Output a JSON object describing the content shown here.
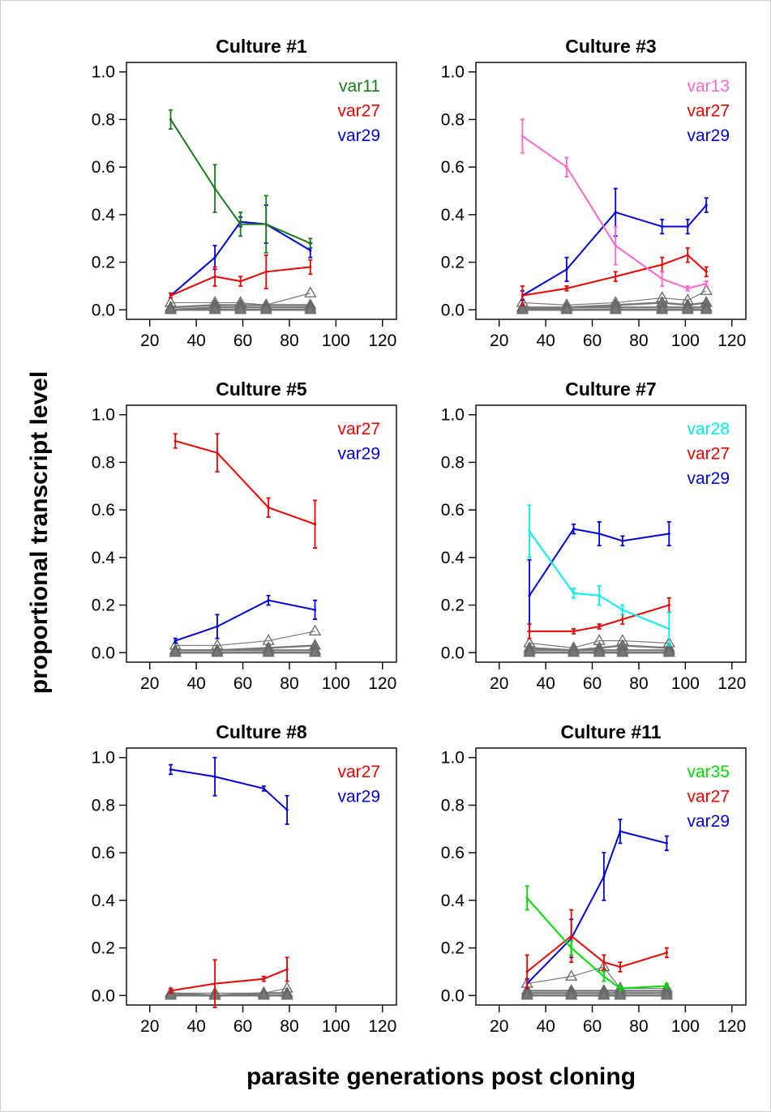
{
  "figure": {
    "ylabel": "proportional transcript level",
    "xlabel": "parasite generations post cloning"
  },
  "axes": {
    "xticks": [
      20,
      40,
      60,
      80,
      100,
      120
    ],
    "yticks": [
      "0.0",
      "0.2",
      "0.4",
      "0.6",
      "0.8",
      "1.0"
    ],
    "xlim": [
      10,
      126
    ],
    "ylim": [
      -0.04,
      1.04
    ]
  },
  "colors": {
    "var11": "#1a7a1a",
    "var13": "#ff66cc",
    "var27": "#ee0000",
    "var28": "#00eeee",
    "var29": "#0000dd",
    "var35": "#00dd00",
    "minor": "#777777"
  },
  "chart_data": [
    {
      "type": "line",
      "title": "Culture #1",
      "xlabel": "parasite generations post cloning",
      "ylabel": "proportional transcript level",
      "x": [
        29,
        48,
        59,
        70,
        89
      ],
      "series": [
        {
          "name": "var11",
          "values": [
            0.8,
            0.51,
            0.36,
            0.36,
            0.28
          ],
          "err": [
            0.04,
            0.1,
            0.05,
            0.12,
            0.02
          ]
        },
        {
          "name": "var27",
          "values": [
            0.06,
            0.14,
            0.12,
            0.16,
            0.18
          ],
          "err": [
            0.01,
            0.04,
            0.02,
            0.07,
            0.03
          ]
        },
        {
          "name": "var29",
          "values": [
            0.06,
            0.22,
            0.37,
            0.36,
            0.25
          ],
          "err": [
            0.01,
            0.05,
            0.02,
            0.08,
            0.03
          ]
        }
      ],
      "minor": [
        [
          0.03,
          0.03,
          0.03,
          0.02,
          0.07
        ],
        [
          0.01,
          0.02,
          0.02,
          0.02,
          0.02
        ],
        [
          0.0,
          0.01,
          0.01,
          0.01,
          0.01
        ],
        [
          0.0,
          0.0,
          0.0,
          0.0,
          0.0
        ]
      ],
      "legend": [
        "var11",
        "var27",
        "var29"
      ],
      "legend_position": "top-right",
      "xlim": [
        10,
        126
      ],
      "ylim": [
        -0.04,
        1.04
      ]
    },
    {
      "type": "line",
      "title": "Culture #3",
      "xlabel": "parasite generations post cloning",
      "ylabel": "proportional transcript level",
      "x": [
        30,
        49,
        70,
        90,
        101,
        109
      ],
      "series": [
        {
          "name": "var13",
          "values": [
            0.73,
            0.6,
            0.27,
            0.13,
            0.09,
            0.11
          ],
          "err": [
            0.07,
            0.04,
            0.08,
            0.03,
            0.01,
            0.01
          ]
        },
        {
          "name": "var27",
          "values": [
            0.06,
            0.09,
            0.14,
            0.19,
            0.23,
            0.16
          ],
          "err": [
            0.04,
            0.01,
            0.02,
            0.03,
            0.03,
            0.02
          ]
        },
        {
          "name": "var29",
          "values": [
            0.06,
            0.17,
            0.41,
            0.35,
            0.35,
            0.44
          ],
          "err": [
            0.02,
            0.05,
            0.1,
            0.03,
            0.03,
            0.03
          ]
        }
      ],
      "minor": [
        [
          0.03,
          0.02,
          0.03,
          0.05,
          0.04,
          0.08
        ],
        [
          0.01,
          0.01,
          0.02,
          0.03,
          0.02,
          0.03
        ],
        [
          0.0,
          0.01,
          0.01,
          0.01,
          0.01,
          0.01
        ],
        [
          0.0,
          0.0,
          0.0,
          0.0,
          0.0,
          0.0
        ]
      ],
      "legend": [
        "var13",
        "var27",
        "var29"
      ],
      "legend_position": "top-right",
      "xlim": [
        10,
        126
      ],
      "ylim": [
        -0.04,
        1.04
      ]
    },
    {
      "type": "line",
      "title": "Culture #5",
      "xlabel": "parasite generations post cloning",
      "ylabel": "proportional transcript level",
      "x": [
        31,
        49,
        71,
        91
      ],
      "series": [
        {
          "name": "var27",
          "values": [
            0.89,
            0.84,
            0.61,
            0.54
          ],
          "err": [
            0.03,
            0.08,
            0.04,
            0.1
          ]
        },
        {
          "name": "var29",
          "values": [
            0.05,
            0.11,
            0.22,
            0.18
          ],
          "err": [
            0.01,
            0.05,
            0.02,
            0.04
          ]
        }
      ],
      "minor": [
        [
          0.03,
          0.03,
          0.05,
          0.09
        ],
        [
          0.01,
          0.01,
          0.02,
          0.03
        ],
        [
          0.01,
          0.01,
          0.01,
          0.01
        ],
        [
          0.0,
          0.0,
          0.0,
          0.0
        ]
      ],
      "legend": [
        "var27",
        "var29"
      ],
      "legend_position": "top-right",
      "xlim": [
        10,
        126
      ],
      "ylim": [
        -0.04,
        1.04
      ]
    },
    {
      "type": "line",
      "title": "Culture #7",
      "xlabel": "parasite generations post cloning",
      "ylabel": "proportional transcript level",
      "x": [
        33,
        52,
        63,
        73,
        93
      ],
      "series": [
        {
          "name": "var28",
          "values": [
            0.51,
            0.25,
            0.24,
            0.18,
            0.1
          ],
          "err": [
            0.11,
            0.02,
            0.04,
            0.02,
            0.07
          ]
        },
        {
          "name": "var27",
          "values": [
            0.09,
            0.09,
            0.11,
            0.14,
            0.2
          ],
          "err": [
            0.03,
            0.01,
            0.01,
            0.02,
            0.03
          ]
        },
        {
          "name": "var29",
          "values": [
            0.24,
            0.52,
            0.5,
            0.47,
            0.5
          ],
          "err": [
            0.15,
            0.02,
            0.05,
            0.02,
            0.05
          ]
        }
      ],
      "minor": [
        [
          0.04,
          0.02,
          0.05,
          0.05,
          0.04
        ],
        [
          0.02,
          0.01,
          0.02,
          0.03,
          0.02
        ],
        [
          0.01,
          0.01,
          0.01,
          0.01,
          0.01
        ],
        [
          0.0,
          0.0,
          0.0,
          0.0,
          0.0
        ]
      ],
      "legend": [
        "var28",
        "var27",
        "var29"
      ],
      "legend_position": "top-right",
      "xlim": [
        10,
        126
      ],
      "ylim": [
        -0.04,
        1.04
      ]
    },
    {
      "type": "line",
      "title": "Culture #8",
      "xlabel": "parasite generations post cloning",
      "ylabel": "proportional transcript level",
      "x": [
        29,
        48,
        69,
        79
      ],
      "series": [
        {
          "name": "var27",
          "values": [
            0.02,
            0.05,
            0.07,
            0.11
          ],
          "err": [
            0.01,
            0.1,
            0.01,
            0.05
          ]
        },
        {
          "name": "var29",
          "values": [
            0.95,
            0.92,
            0.87,
            0.78
          ],
          "err": [
            0.02,
            0.08,
            0.01,
            0.06
          ]
        }
      ],
      "minor": [
        [
          0.01,
          0.01,
          0.01,
          0.03
        ],
        [
          0.01,
          0.0,
          0.01,
          0.01
        ],
        [
          0.0,
          0.0,
          0.0,
          0.0
        ]
      ],
      "legend": [
        "var27",
        "var29"
      ],
      "legend_position": "top-right",
      "xlim": [
        10,
        126
      ],
      "ylim": [
        -0.04,
        1.04
      ]
    },
    {
      "type": "line",
      "title": "Culture #11",
      "xlabel": "parasite generations post cloning",
      "ylabel": "proportional transcript level",
      "x": [
        32,
        51,
        65,
        72,
        92
      ],
      "series": [
        {
          "name": "var35",
          "values": [
            0.41,
            0.2,
            0.08,
            0.03,
            0.04
          ],
          "err": [
            0.05,
            0.03,
            0.02,
            0.01,
            0.01
          ]
        },
        {
          "name": "var27",
          "values": [
            0.1,
            0.25,
            0.14,
            0.12,
            0.18
          ],
          "err": [
            0.07,
            0.11,
            0.03,
            0.02,
            0.02
          ]
        },
        {
          "name": "var29",
          "values": [
            0.05,
            0.24,
            0.5,
            0.69,
            0.64
          ],
          "err": [
            0.02,
            0.08,
            0.1,
            0.05,
            0.03
          ]
        }
      ],
      "minor": [
        [
          0.05,
          0.08,
          0.12,
          0.03,
          0.03
        ],
        [
          0.02,
          0.02,
          0.02,
          0.02,
          0.02
        ],
        [
          0.01,
          0.01,
          0.01,
          0.01,
          0.01
        ],
        [
          0.0,
          0.0,
          0.0,
          0.0,
          0.0
        ]
      ],
      "legend": [
        "var35",
        "var27",
        "var29"
      ],
      "legend_position": "top-right",
      "xlim": [
        10,
        126
      ],
      "ylim": [
        -0.04,
        1.04
      ]
    }
  ]
}
